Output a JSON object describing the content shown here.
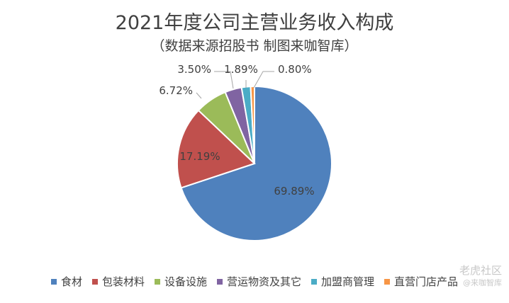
{
  "chart_data": {
    "type": "pie",
    "title": "2021年度公司主营业务收入构成",
    "subtitle": "（数据来源招股书 制图来咖智库）",
    "slices": [
      {
        "label": "食材",
        "value": 69.89,
        "display": "69.89%",
        "color": "#4f81bd"
      },
      {
        "label": "包装材料",
        "value": 17.19,
        "display": "17.19%",
        "color": "#c0504d"
      },
      {
        "label": "设备设施",
        "value": 6.72,
        "display": "6.72%",
        "color": "#9bbb59"
      },
      {
        "label": "营运物资及其它",
        "value": 3.5,
        "display": "3.50%",
        "color": "#8064a2"
      },
      {
        "label": "加盟商管理",
        "value": 1.89,
        "display": "1.89%",
        "color": "#4bacc6"
      },
      {
        "label": "直营门店产品",
        "value": 0.8,
        "display": "0.80%",
        "color": "#f79646"
      }
    ],
    "legend_position": "bottom"
  },
  "watermark": {
    "line1": "老虎社区",
    "line2": "@来咖智库"
  }
}
